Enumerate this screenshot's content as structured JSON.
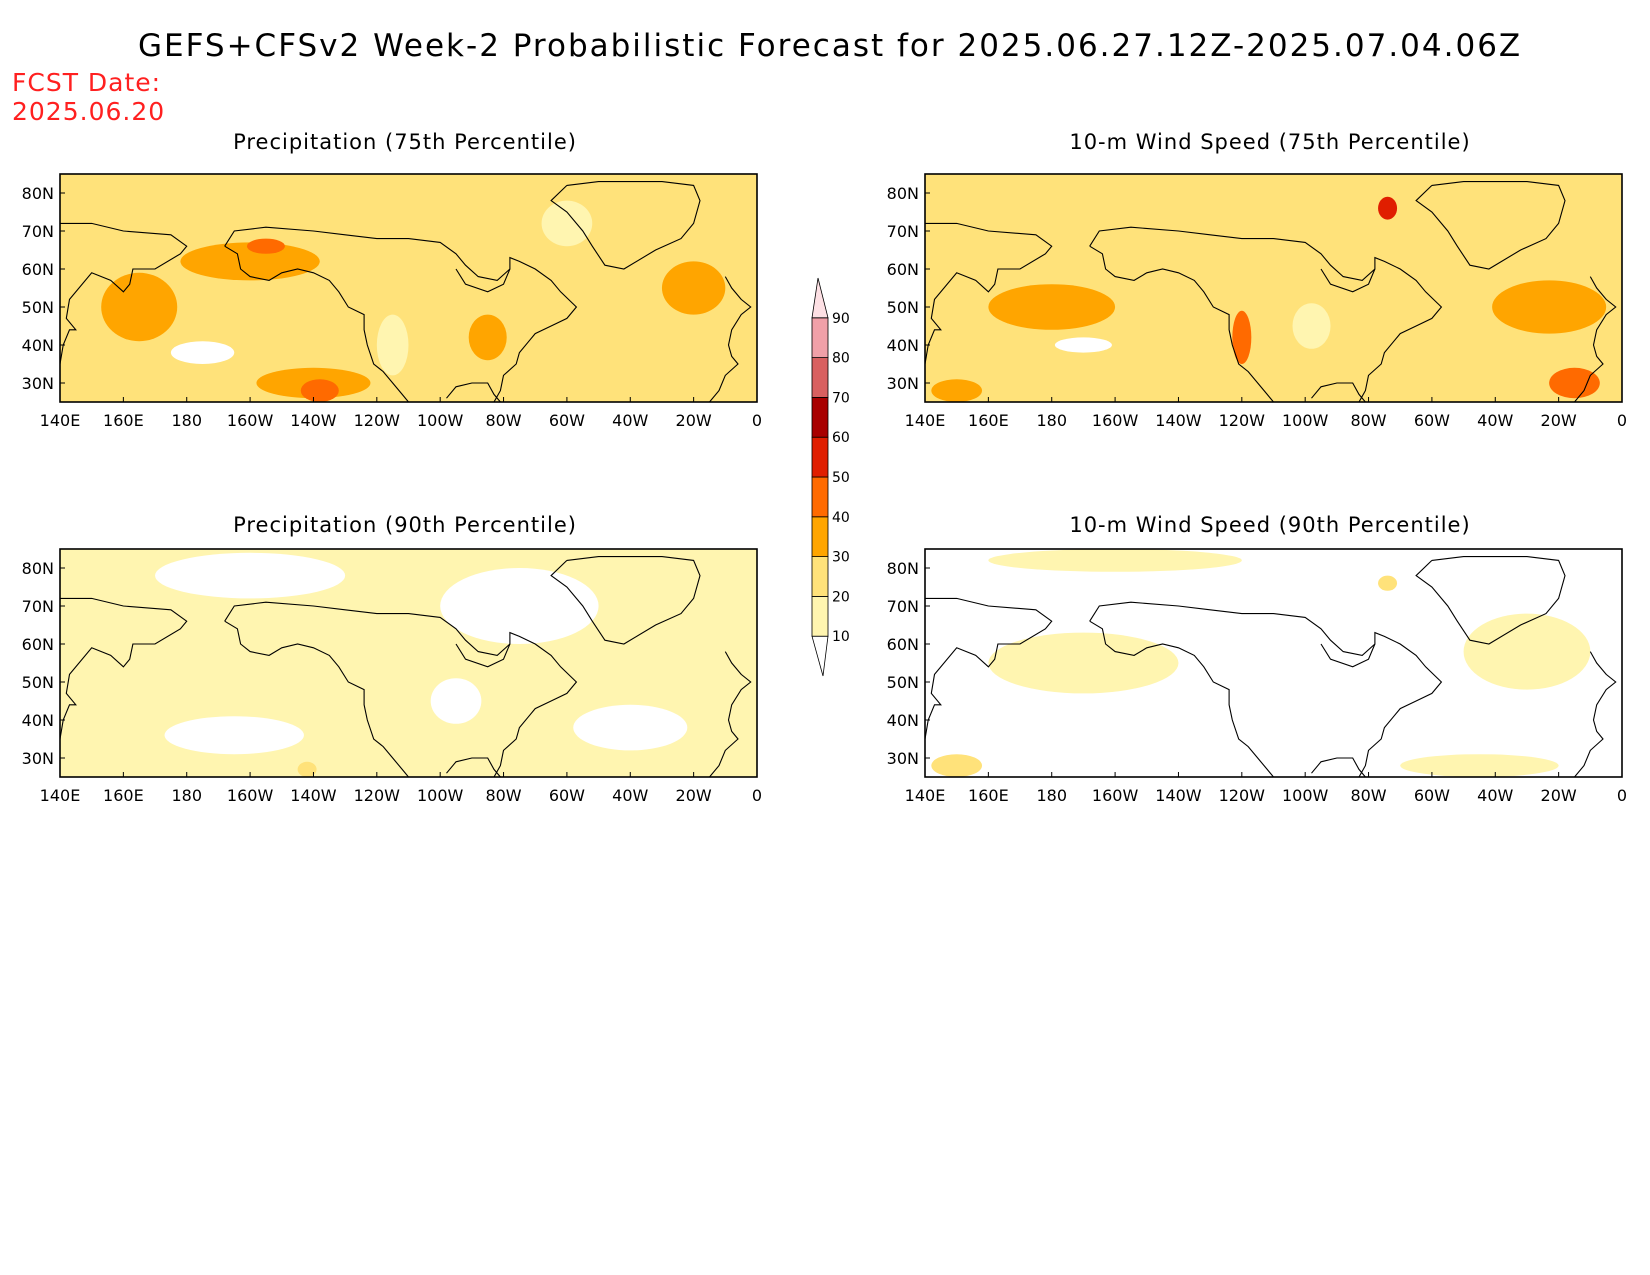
{
  "title": "GEFS+CFSv2 Week-2 Probabilistic Forecast for 2025.06.27.12Z-2025.07.04.06Z",
  "fcst_label": "FCST Date:",
  "fcst_date": "2025.06.20",
  "x_ticks": [
    "140E",
    "160E",
    "180",
    "160W",
    "140W",
    "120W",
    "100W",
    "80W",
    "60W",
    "40W",
    "20W",
    "0"
  ],
  "y_ticks": [
    "80N",
    "70N",
    "60N",
    "50N",
    "40N",
    "30N"
  ],
  "colorbar": {
    "levels": [
      "10",
      "20",
      "30",
      "40",
      "50",
      "60",
      "70",
      "80",
      "90"
    ],
    "colors": [
      "#ffffff",
      "#fff5b0",
      "#ffe27a",
      "#ffa500",
      "#ff6a00",
      "#e01e00",
      "#a80000",
      "#d86060",
      "#f0a0a8",
      "#fde0e4"
    ]
  },
  "panels": [
    {
      "title": "Precipitation (75th Percentile)",
      "base": "#ffe27a",
      "blobs": [
        {
          "lon": 165,
          "lat": 50,
          "rx": 12,
          "ry": 9,
          "level": 3
        },
        {
          "lon": 200,
          "lat": 62,
          "rx": 22,
          "ry": 5,
          "level": 3
        },
        {
          "lon": 205,
          "lat": 66,
          "rx": 6,
          "ry": 2,
          "level": 4
        },
        {
          "lon": 220,
          "lat": 30,
          "rx": 18,
          "ry": 4,
          "level": 3
        },
        {
          "lon": 222,
          "lat": 28,
          "rx": 6,
          "ry": 3,
          "level": 4
        },
        {
          "lon": 275,
          "lat": 42,
          "rx": 6,
          "ry": 6,
          "level": 3
        },
        {
          "lon": 340,
          "lat": 55,
          "rx": 10,
          "ry": 7,
          "level": 3
        },
        {
          "lon": 185,
          "lat": 38,
          "rx": 10,
          "ry": 3,
          "level": 0
        },
        {
          "lon": 245,
          "lat": 40,
          "rx": 5,
          "ry": 8,
          "level": 1
        },
        {
          "lon": 300,
          "lat": 72,
          "rx": 8,
          "ry": 6,
          "level": 1
        }
      ]
    },
    {
      "title": "10-m Wind Speed (75th Percentile)",
      "base": "#ffe27a",
      "blobs": [
        {
          "lon": 180,
          "lat": 50,
          "rx": 20,
          "ry": 6,
          "level": 3
        },
        {
          "lon": 240,
          "lat": 42,
          "rx": 3,
          "ry": 7,
          "level": 4
        },
        {
          "lon": 337,
          "lat": 50,
          "rx": 18,
          "ry": 7,
          "level": 3
        },
        {
          "lon": 345,
          "lat": 30,
          "rx": 8,
          "ry": 4,
          "level": 4
        },
        {
          "lon": 286,
          "lat": 76,
          "rx": 3,
          "ry": 3,
          "level": 5
        },
        {
          "lon": 150,
          "lat": 28,
          "rx": 8,
          "ry": 3,
          "level": 3
        },
        {
          "lon": 190,
          "lat": 40,
          "rx": 9,
          "ry": 2,
          "level": 0
        },
        {
          "lon": 262,
          "lat": 45,
          "rx": 6,
          "ry": 6,
          "level": 1
        }
      ]
    },
    {
      "title": "Precipitation (90th Percentile)",
      "base": "#fff5b0",
      "blobs": [
        {
          "lon": 200,
          "lat": 78,
          "rx": 30,
          "ry": 6,
          "level": 0
        },
        {
          "lon": 285,
          "lat": 70,
          "rx": 25,
          "ry": 10,
          "level": 0
        },
        {
          "lon": 195,
          "lat": 36,
          "rx": 22,
          "ry": 5,
          "level": 0
        },
        {
          "lon": 320,
          "lat": 38,
          "rx": 18,
          "ry": 6,
          "level": 0
        },
        {
          "lon": 265,
          "lat": 45,
          "rx": 8,
          "ry": 6,
          "level": 0
        },
        {
          "lon": 218,
          "lat": 27,
          "rx": 3,
          "ry": 2,
          "level": 2
        }
      ]
    },
    {
      "title": "10-m Wind Speed (90th Percentile)",
      "base": "#ffffff",
      "blobs": [
        {
          "lon": 190,
          "lat": 55,
          "rx": 30,
          "ry": 8,
          "level": 1
        },
        {
          "lon": 330,
          "lat": 58,
          "rx": 20,
          "ry": 10,
          "level": 1
        },
        {
          "lon": 315,
          "lat": 28,
          "rx": 25,
          "ry": 3,
          "level": 1
        },
        {
          "lon": 150,
          "lat": 28,
          "rx": 8,
          "ry": 3,
          "level": 2
        },
        {
          "lon": 286,
          "lat": 76,
          "rx": 3,
          "ry": 2,
          "level": 2
        },
        {
          "lon": 200,
          "lat": 82,
          "rx": 40,
          "ry": 3,
          "level": 1
        }
      ]
    }
  ]
}
